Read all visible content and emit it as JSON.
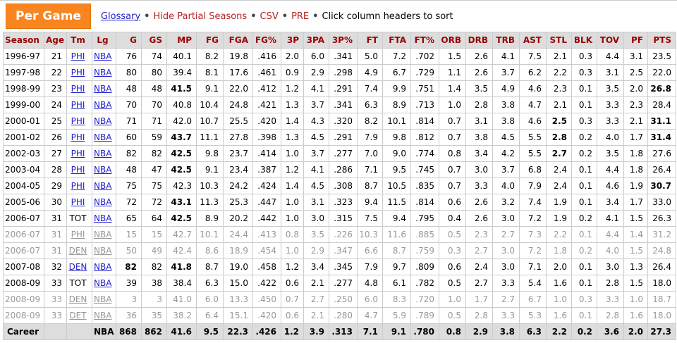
{
  "toolbar": {
    "title": "Per Game",
    "glossary_label": "Glossary",
    "separator": "•",
    "links": [
      "Hide Partial Seasons",
      "CSV",
      "PRE"
    ],
    "hint": "Click column headers to sort"
  },
  "colors": {
    "tab_orange": "#F8851F",
    "header_text_maroon": "#990000",
    "red_link": "#B22222",
    "blue_link": "#2222CC",
    "partial_gray": "#999999",
    "header_bg": "#DDDDDD",
    "grid_border": "#CCCCCC"
  },
  "table": {
    "headers": [
      "Season",
      "Age",
      "Tm",
      "Lg",
      "G",
      "GS",
      "MP",
      "FG",
      "FGA",
      "FG%",
      "3P",
      "3PA",
      "3P%",
      "FT",
      "FTA",
      "FT%",
      "ORB",
      "DRB",
      "TRB",
      "AST",
      "STL",
      "BLK",
      "TOV",
      "PF",
      "PTS"
    ],
    "rows": [
      {
        "season": "1996-97",
        "age": "21",
        "tm": "PHI",
        "tm_link": true,
        "lg": "NBA",
        "lg_link": true,
        "partial": false,
        "career": false,
        "stats": [
          "76",
          "74",
          "40.1",
          "8.2",
          "19.8",
          ".416",
          "2.0",
          "6.0",
          ".341",
          "5.0",
          "7.2",
          ".702",
          "1.5",
          "2.6",
          "4.1",
          "7.5",
          "2.1",
          "0.3",
          "4.4",
          "3.1",
          "23.5"
        ],
        "bold": []
      },
      {
        "season": "1997-98",
        "age": "22",
        "tm": "PHI",
        "tm_link": true,
        "lg": "NBA",
        "lg_link": true,
        "partial": false,
        "career": false,
        "stats": [
          "80",
          "80",
          "39.4",
          "8.1",
          "17.6",
          ".461",
          "0.9",
          "2.9",
          ".298",
          "4.9",
          "6.7",
          ".729",
          "1.1",
          "2.6",
          "3.7",
          "6.2",
          "2.2",
          "0.3",
          "3.1",
          "2.5",
          "22.0"
        ],
        "bold": []
      },
      {
        "season": "1998-99",
        "age": "23",
        "tm": "PHI",
        "tm_link": true,
        "lg": "NBA",
        "lg_link": true,
        "partial": false,
        "career": false,
        "stats": [
          "48",
          "48",
          "41.5",
          "9.1",
          "22.0",
          ".412",
          "1.2",
          "4.1",
          ".291",
          "7.4",
          "9.9",
          ".751",
          "1.4",
          "3.5",
          "4.9",
          "4.6",
          "2.3",
          "0.1",
          "3.5",
          "2.0",
          "26.8"
        ],
        "bold": [
          2,
          20
        ]
      },
      {
        "season": "1999-00",
        "age": "24",
        "tm": "PHI",
        "tm_link": true,
        "lg": "NBA",
        "lg_link": true,
        "partial": false,
        "career": false,
        "stats": [
          "70",
          "70",
          "40.8",
          "10.4",
          "24.8",
          ".421",
          "1.3",
          "3.7",
          ".341",
          "6.3",
          "8.9",
          ".713",
          "1.0",
          "2.8",
          "3.8",
          "4.7",
          "2.1",
          "0.1",
          "3.3",
          "2.3",
          "28.4"
        ],
        "bold": []
      },
      {
        "season": "2000-01",
        "age": "25",
        "tm": "PHI",
        "tm_link": true,
        "lg": "NBA",
        "lg_link": true,
        "partial": false,
        "career": false,
        "stats": [
          "71",
          "71",
          "42.0",
          "10.7",
          "25.5",
          ".420",
          "1.4",
          "4.3",
          ".320",
          "8.2",
          "10.1",
          ".814",
          "0.7",
          "3.1",
          "3.8",
          "4.6",
          "2.5",
          "0.3",
          "3.3",
          "2.1",
          "31.1"
        ],
        "bold": [
          16,
          20
        ]
      },
      {
        "season": "2001-02",
        "age": "26",
        "tm": "PHI",
        "tm_link": true,
        "lg": "NBA",
        "lg_link": true,
        "partial": false,
        "career": false,
        "stats": [
          "60",
          "59",
          "43.7",
          "11.1",
          "27.8",
          ".398",
          "1.3",
          "4.5",
          ".291",
          "7.9",
          "9.8",
          ".812",
          "0.7",
          "3.8",
          "4.5",
          "5.5",
          "2.8",
          "0.2",
          "4.0",
          "1.7",
          "31.4"
        ],
        "bold": [
          2,
          16,
          20
        ]
      },
      {
        "season": "2002-03",
        "age": "27",
        "tm": "PHI",
        "tm_link": true,
        "lg": "NBA",
        "lg_link": true,
        "partial": false,
        "career": false,
        "stats": [
          "82",
          "82",
          "42.5",
          "9.8",
          "23.7",
          ".414",
          "1.0",
          "3.7",
          ".277",
          "7.0",
          "9.0",
          ".774",
          "0.8",
          "3.4",
          "4.2",
          "5.5",
          "2.7",
          "0.2",
          "3.5",
          "1.8",
          "27.6"
        ],
        "bold": [
          2,
          16
        ]
      },
      {
        "season": "2003-04",
        "age": "28",
        "tm": "PHI",
        "tm_link": true,
        "lg": "NBA",
        "lg_link": true,
        "partial": false,
        "career": false,
        "stats": [
          "48",
          "47",
          "42.5",
          "9.1",
          "23.4",
          ".387",
          "1.2",
          "4.1",
          ".286",
          "7.1",
          "9.5",
          ".745",
          "0.7",
          "3.0",
          "3.7",
          "6.8",
          "2.4",
          "0.1",
          "4.4",
          "1.8",
          "26.4"
        ],
        "bold": [
          2
        ]
      },
      {
        "season": "2004-05",
        "age": "29",
        "tm": "PHI",
        "tm_link": true,
        "lg": "NBA",
        "lg_link": true,
        "partial": false,
        "career": false,
        "stats": [
          "75",
          "75",
          "42.3",
          "10.3",
          "24.2",
          ".424",
          "1.4",
          "4.5",
          ".308",
          "8.7",
          "10.5",
          ".835",
          "0.7",
          "3.3",
          "4.0",
          "7.9",
          "2.4",
          "0.1",
          "4.6",
          "1.9",
          "30.7"
        ],
        "bold": [
          20
        ]
      },
      {
        "season": "2005-06",
        "age": "30",
        "tm": "PHI",
        "tm_link": true,
        "lg": "NBA",
        "lg_link": true,
        "partial": false,
        "career": false,
        "stats": [
          "72",
          "72",
          "43.1",
          "11.3",
          "25.3",
          ".447",
          "1.0",
          "3.1",
          ".323",
          "9.4",
          "11.5",
          ".814",
          "0.6",
          "2.6",
          "3.2",
          "7.4",
          "1.9",
          "0.1",
          "3.4",
          "1.7",
          "33.0"
        ],
        "bold": [
          2
        ]
      },
      {
        "season": "2006-07",
        "age": "31",
        "tm": "TOT",
        "tm_link": false,
        "lg": "NBA",
        "lg_link": true,
        "partial": false,
        "career": false,
        "stats": [
          "65",
          "64",
          "42.5",
          "8.9",
          "20.2",
          ".442",
          "1.0",
          "3.0",
          ".315",
          "7.5",
          "9.4",
          ".795",
          "0.4",
          "2.6",
          "3.0",
          "7.2",
          "1.9",
          "0.2",
          "4.1",
          "1.5",
          "26.3"
        ],
        "bold": [
          2
        ]
      },
      {
        "season": "2006-07",
        "age": "31",
        "tm": "PHI",
        "tm_link": true,
        "lg": "NBA",
        "lg_link": true,
        "partial": true,
        "career": false,
        "stats": [
          "15",
          "15",
          "42.7",
          "10.1",
          "24.4",
          ".413",
          "0.8",
          "3.5",
          ".226",
          "10.3",
          "11.6",
          ".885",
          "0.5",
          "2.3",
          "2.7",
          "7.3",
          "2.2",
          "0.1",
          "4.4",
          "1.4",
          "31.2"
        ],
        "bold": []
      },
      {
        "season": "2006-07",
        "age": "31",
        "tm": "DEN",
        "tm_link": true,
        "lg": "NBA",
        "lg_link": true,
        "partial": true,
        "career": false,
        "stats": [
          "50",
          "49",
          "42.4",
          "8.6",
          "18.9",
          ".454",
          "1.0",
          "2.9",
          ".347",
          "6.6",
          "8.7",
          ".759",
          "0.3",
          "2.7",
          "3.0",
          "7.2",
          "1.8",
          "0.2",
          "4.0",
          "1.5",
          "24.8"
        ],
        "bold": []
      },
      {
        "season": "2007-08",
        "age": "32",
        "tm": "DEN",
        "tm_link": true,
        "lg": "NBA",
        "lg_link": true,
        "partial": false,
        "career": false,
        "stats": [
          "82",
          "82",
          "41.8",
          "8.7",
          "19.0",
          ".458",
          "1.2",
          "3.4",
          ".345",
          "7.9",
          "9.7",
          ".809",
          "0.6",
          "2.4",
          "3.0",
          "7.1",
          "2.0",
          "0.1",
          "3.0",
          "1.3",
          "26.4"
        ],
        "bold": [
          0,
          2
        ]
      },
      {
        "season": "2008-09",
        "age": "33",
        "tm": "TOT",
        "tm_link": false,
        "lg": "NBA",
        "lg_link": true,
        "partial": false,
        "career": false,
        "stats": [
          "39",
          "38",
          "38.4",
          "6.3",
          "15.0",
          ".422",
          "0.6",
          "2.1",
          ".277",
          "4.8",
          "6.1",
          ".782",
          "0.5",
          "2.7",
          "3.3",
          "5.4",
          "1.6",
          "0.1",
          "2.8",
          "1.5",
          "18.0"
        ],
        "bold": []
      },
      {
        "season": "2008-09",
        "age": "33",
        "tm": "DEN",
        "tm_link": true,
        "lg": "NBA",
        "lg_link": true,
        "partial": true,
        "career": false,
        "stats": [
          "3",
          "3",
          "41.0",
          "6.0",
          "13.3",
          ".450",
          "0.7",
          "2.7",
          ".250",
          "6.0",
          "8.3",
          ".720",
          "1.0",
          "1.7",
          "2.7",
          "6.7",
          "1.0",
          "0.3",
          "3.3",
          "1.0",
          "18.7"
        ],
        "bold": []
      },
      {
        "season": "2008-09",
        "age": "33",
        "tm": "DET",
        "tm_link": true,
        "lg": "NBA",
        "lg_link": true,
        "partial": true,
        "career": false,
        "stats": [
          "36",
          "35",
          "38.2",
          "6.4",
          "15.1",
          ".420",
          "0.6",
          "2.1",
          ".280",
          "4.7",
          "5.9",
          ".789",
          "0.5",
          "2.8",
          "3.3",
          "5.3",
          "1.6",
          "0.1",
          "2.8",
          "1.6",
          "18.0"
        ],
        "bold": []
      },
      {
        "season": "Career",
        "age": "",
        "tm": "",
        "tm_link": false,
        "lg": "NBA",
        "lg_link": false,
        "partial": false,
        "career": true,
        "stats": [
          "868",
          "862",
          "41.6",
          "9.5",
          "22.3",
          ".426",
          "1.2",
          "3.9",
          ".313",
          "7.1",
          "9.1",
          ".780",
          "0.8",
          "2.9",
          "3.8",
          "6.3",
          "2.2",
          "0.2",
          "3.6",
          "2.0",
          "27.3"
        ],
        "bold": []
      }
    ]
  }
}
